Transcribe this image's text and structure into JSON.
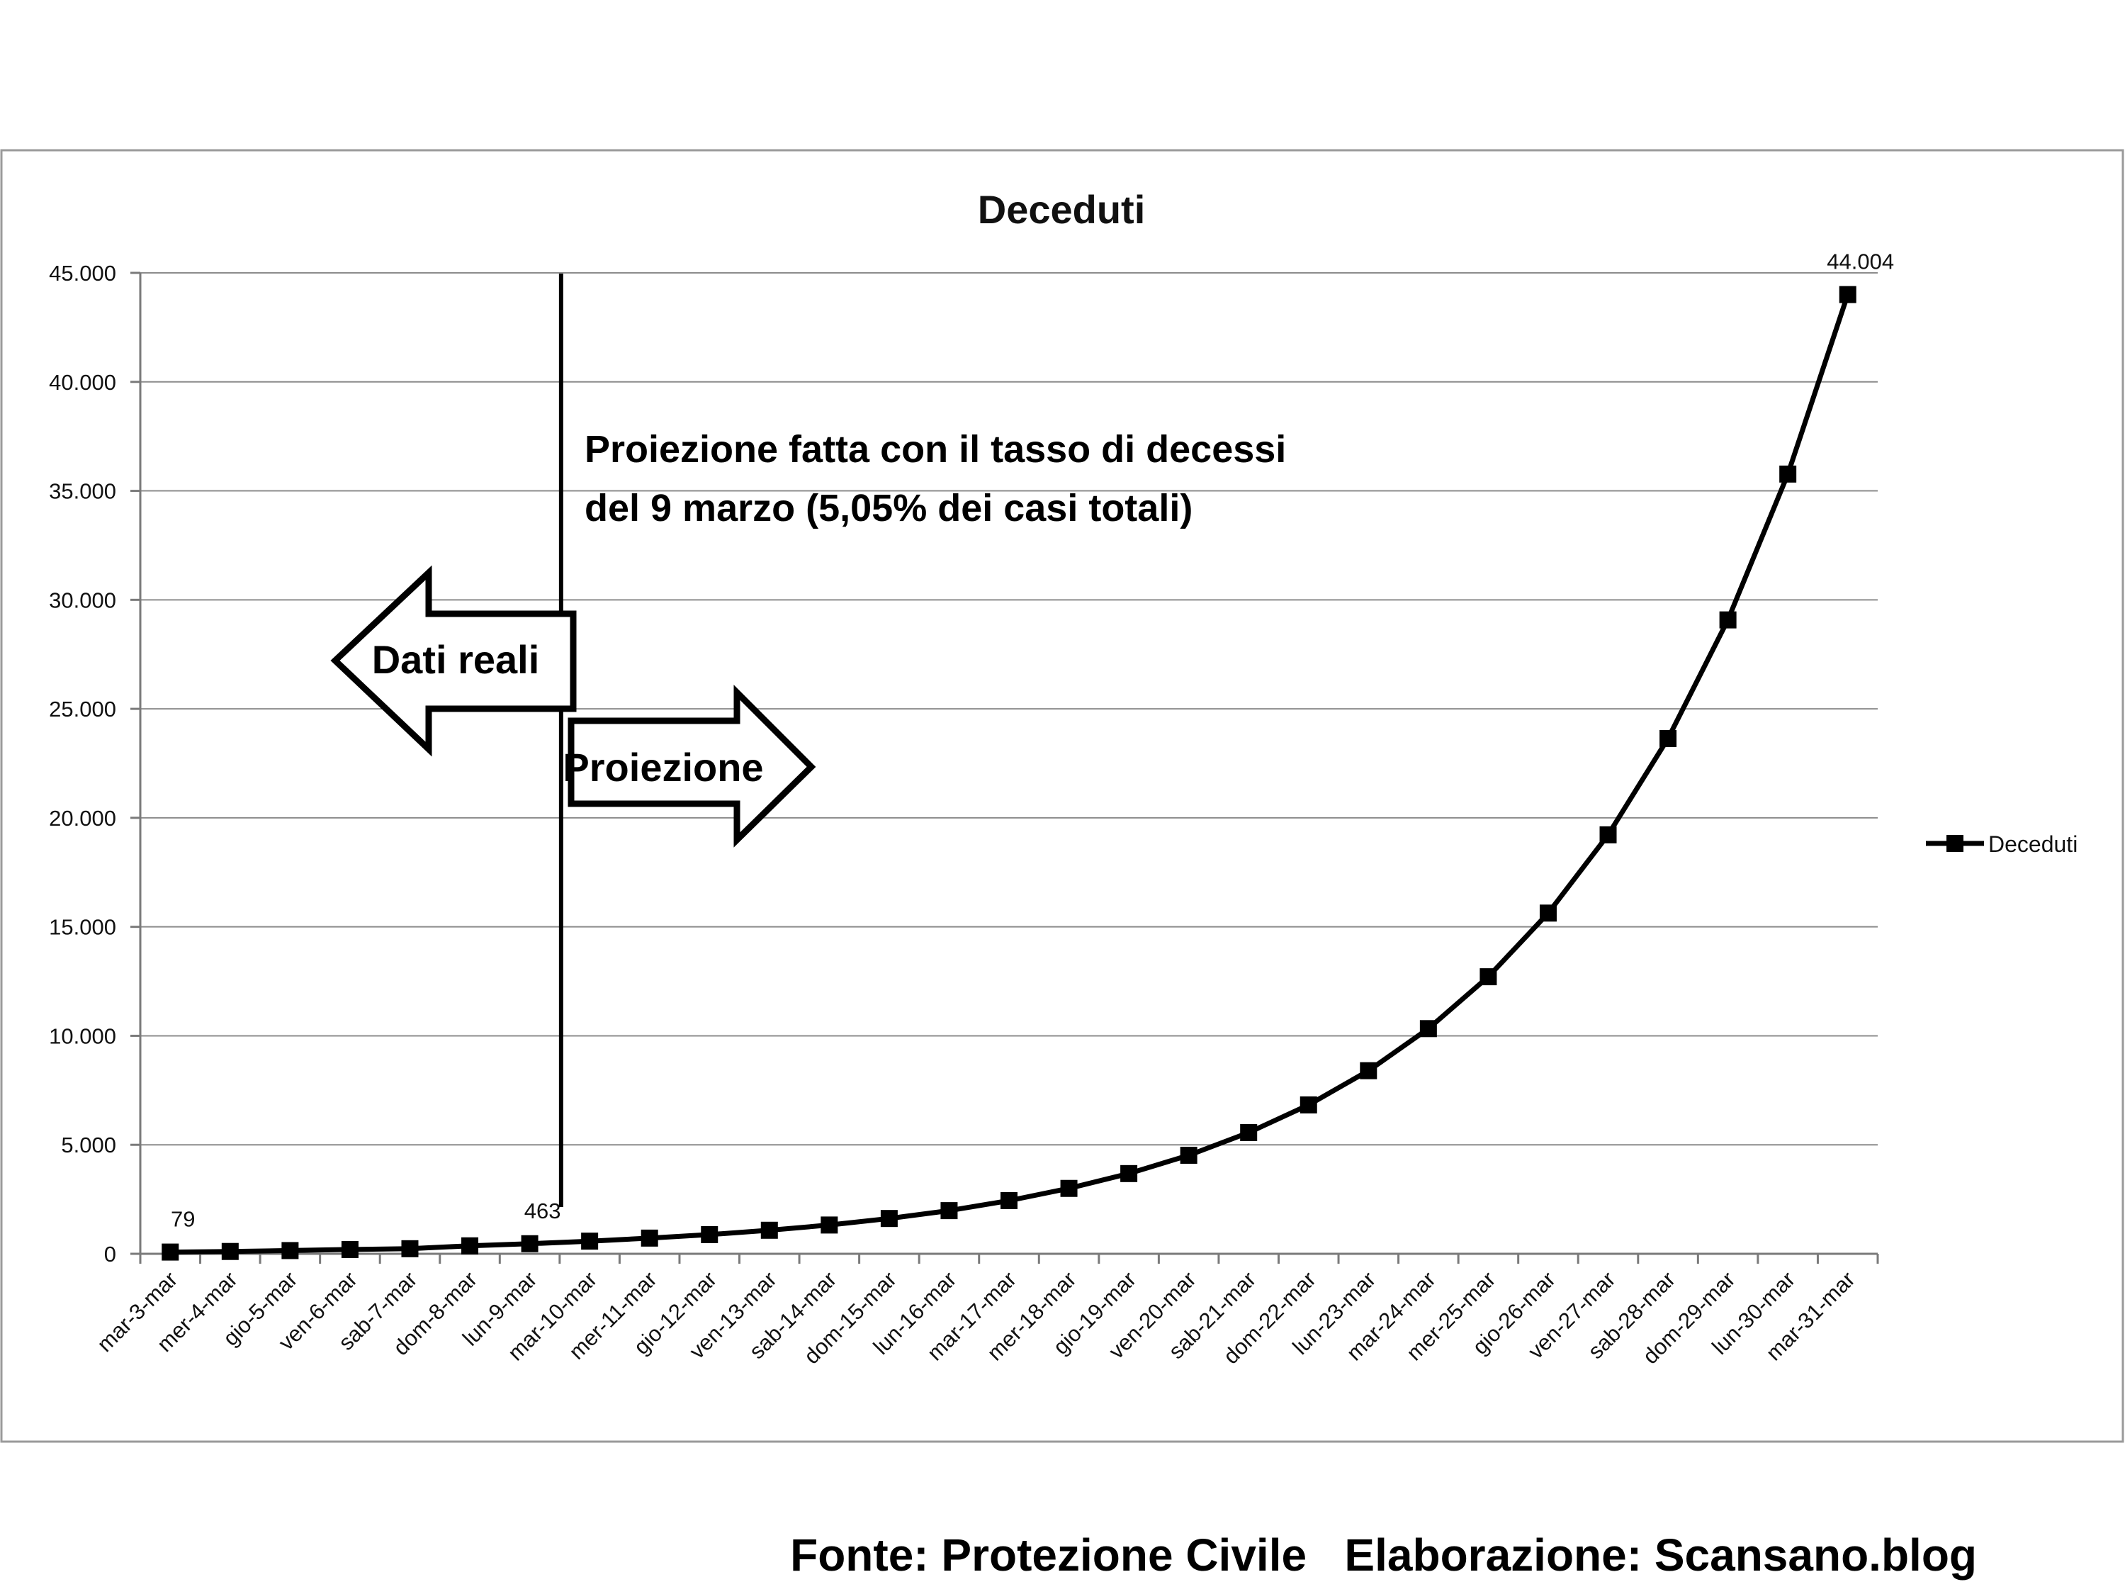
{
  "chart_data": {
    "type": "line",
    "title": "Deceduti",
    "xlabel": "",
    "ylabel": "",
    "ylim": [
      0,
      45000
    ],
    "yticks": [
      0,
      5000,
      10000,
      15000,
      20000,
      25000,
      30000,
      35000,
      40000,
      45000
    ],
    "ytick_labels": [
      "0",
      "5.000",
      "10.000",
      "15.000",
      "20.000",
      "25.000",
      "30.000",
      "35.000",
      "40.000",
      "45.000"
    ],
    "grid": true,
    "legend_position": "right",
    "categories": [
      "mar-3-mar",
      "mer-4-mar",
      "gio-5-mar",
      "ven-6-mar",
      "sab-7-mar",
      "dom-8-mar",
      "lun-9-mar",
      "mar-10-mar",
      "mer-11-mar",
      "gio-12-mar",
      "ven-13-mar",
      "sab-14-mar",
      "dom-15-mar",
      "lun-16-mar",
      "mar-17-mar",
      "mer-18-mar",
      "gio-19-mar",
      "ven-20-mar",
      "sab-21-mar",
      "dom-22-mar",
      "lun-23-mar",
      "mar-24-mar",
      "mer-25-mar",
      "gio-26-mar",
      "ven-27-mar",
      "sab-28-mar",
      "dom-29-mar",
      "lun-30-mar",
      "mar-31-mar"
    ],
    "series": [
      {
        "name": "Deceduti",
        "color": "#000000",
        "marker": "square",
        "values": [
          79,
          107,
          148,
          197,
          233,
          366,
          463,
          580,
          720,
          880,
          1080,
          1320,
          1620,
          1980,
          2440,
          3000,
          3680,
          4520,
          5560,
          6830,
          8400,
          10330,
          12710,
          15630,
          19220,
          23640,
          29080,
          35770,
          44004
        ]
      }
    ],
    "data_labels": [
      {
        "index": 0,
        "text": "79"
      },
      {
        "index": 6,
        "text": "463"
      },
      {
        "index": 28,
        "text": "44.004"
      }
    ],
    "annotation": {
      "line1": "Proiezione fatta con il tasso di decessi",
      "line2": "del 9 marzo (5,05% dei casi totali)",
      "divider_after_index": 6
    },
    "arrow_left_label": "Dati reali",
    "arrow_right_label": "Proiezione"
  },
  "footer": {
    "source": "Fonte: Protezione Civile   Elaborazione: Scansano.blog"
  }
}
